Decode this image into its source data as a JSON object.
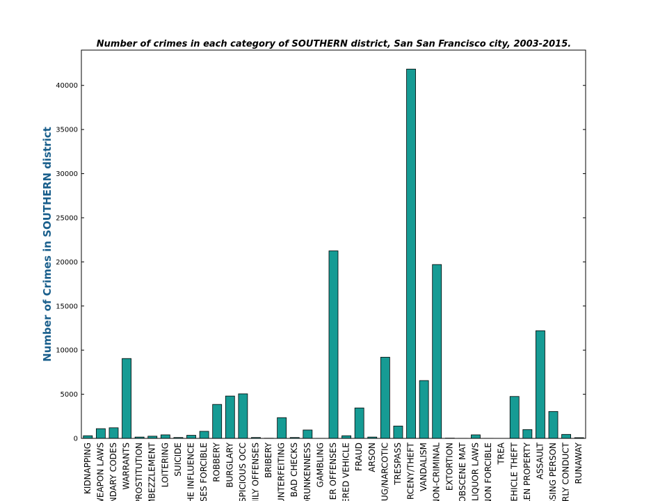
{
  "chart_data": {
    "type": "bar",
    "title": "Number of crimes in each category of SOUTHERN district, San San Francisco city, 2003-2015.",
    "xlabel": "",
    "ylabel": "Number of Crimes in SOUTHERN district",
    "ylim": [
      0,
      44000
    ],
    "yticks": [
      0,
      5000,
      10000,
      15000,
      20000,
      25000,
      30000,
      35000,
      40000
    ],
    "grid": false,
    "bar_color": "#169b94",
    "categories": [
      "KIDNAPPING",
      "WEAPON LAWS",
      "NDARY CODES",
      "WARRANTS",
      "PROSTITUTION",
      "EMBEZZLEMENT",
      "LOITERING",
      "SUICIDE",
      "THE INFLUENCE",
      "SES FORCIBLE",
      "ROBBERY",
      "BURGLARY",
      "SPICIOUS OCC",
      "MILY OFFENSES",
      "BRIBERY",
      "UNTERFEITING",
      "BAD CHECKS",
      "DRUNKENNESS",
      "GAMBLING",
      "ER OFFENSES",
      "ERED VEHICLE",
      "FRAUD",
      "ARSON",
      "UG/NARCOTIC",
      "TRESPASS",
      "RCENY/THEFT",
      "VANDALISM",
      "NON-CRIMINAL",
      "EXTORTION",
      "OBSCENE MAT",
      "LIQUOR LAWS",
      "NON FORCIBLE",
      "TREA",
      "VEHICLE THEFT",
      "LEN PROPERTY",
      "ASSAULT",
      "SSING PERSON",
      "RLY CONDUCT",
      "RUNAWAY"
    ],
    "values": [
      300,
      1100,
      1200,
      9050,
      150,
      250,
      400,
      100,
      350,
      800,
      3850,
      4800,
      5050,
      100,
      20,
      2350,
      100,
      950,
      10,
      21250,
      300,
      3450,
      150,
      9200,
      1400,
      41850,
      6550,
      19700,
      30,
      10,
      400,
      10,
      5,
      4750,
      1000,
      12200,
      3050,
      450,
      80
    ]
  }
}
